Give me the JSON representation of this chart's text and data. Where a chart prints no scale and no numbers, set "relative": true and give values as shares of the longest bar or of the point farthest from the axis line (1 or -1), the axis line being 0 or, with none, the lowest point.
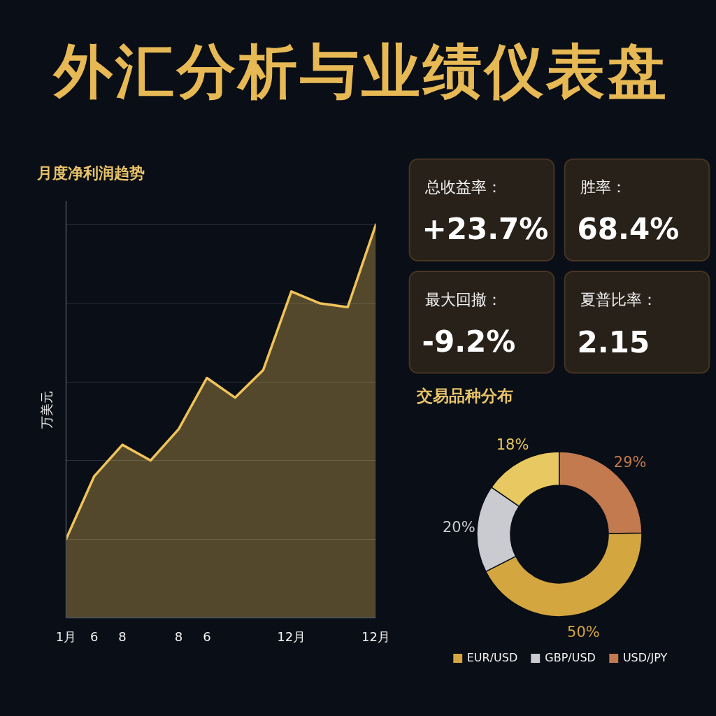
{
  "chart_data": [
    {
      "type": "area",
      "title": "外汇分析与业绩仪表盘",
      "subtitle": "月度净利润趋势",
      "ylabel": "万美元",
      "categories": [
        "1月",
        "6",
        "8",
        null,
        "8",
        "6",
        null,
        null,
        "12月",
        null,
        null,
        "12月"
      ],
      "values": [
        0.2,
        0.36,
        0.44,
        0.4,
        0.48,
        0.61,
        0.56,
        0.63,
        0.83,
        0.8,
        0.79,
        1.0
      ],
      "color": "#f0c35a",
      "relative": true,
      "grid": "y"
    },
    {
      "type": "other",
      "annotations": [
        "总收益率：",
        "+23.7%",
        "胜率：",
        "68.4%",
        "最大回撤：",
        "-9.2%",
        "夏普比率：",
        "2.15"
      ]
    },
    {
      "type": "donut",
      "title": "交易品种分布",
      "categories": [
        "EUR/USD",
        "GBP/USD",
        null,
        "USD/JPY"
      ],
      "values": [
        50,
        20,
        18,
        29
      ],
      "colors": [
        "#d4a640",
        "#c9cbd0",
        "#e8c860",
        "#c27a4e"
      ],
      "value_labels": [
        "50%",
        "20%",
        "18%",
        "29%"
      ],
      "legend": "bottom"
    }
  ]
}
